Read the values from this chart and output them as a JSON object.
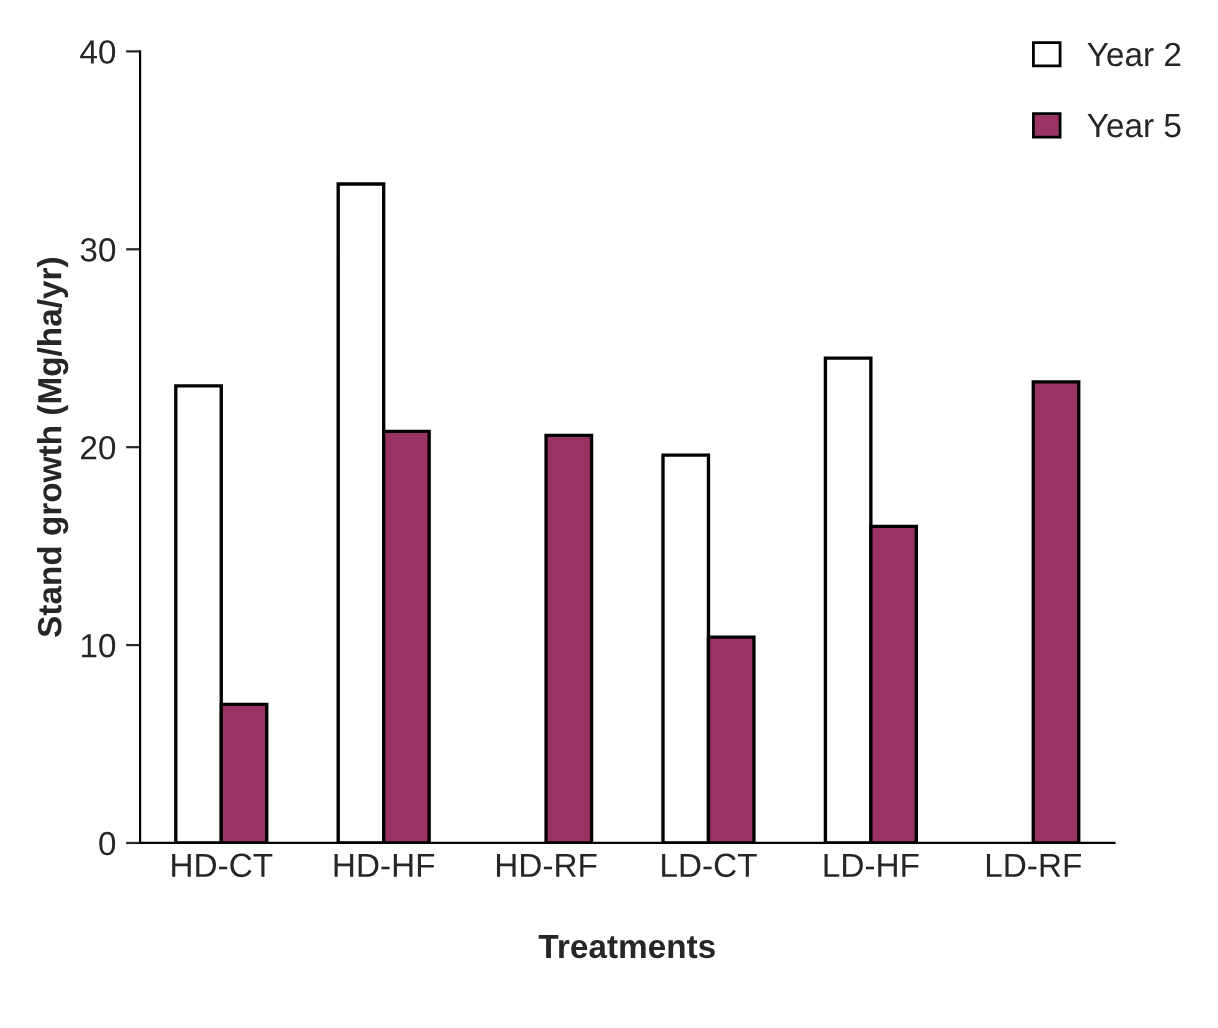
{
  "chart_data": {
    "type": "bar",
    "xlabel": "Treatments",
    "ylabel": "Stand growth (Mg/ha/yr)",
    "categories": [
      "HD-CT",
      "HD-HF",
      "HD-RF",
      "LD-CT",
      "LD-HF",
      "LD-RF"
    ],
    "series": [
      {
        "name": "Year 2",
        "color": "#ffffff",
        "values": [
          23.1,
          33.3,
          null,
          19.6,
          24.5,
          null
        ]
      },
      {
        "name": "Year 5",
        "color": "#993366",
        "values": [
          7.0,
          20.8,
          20.6,
          10.4,
          16.0,
          23.3
        ]
      }
    ],
    "ylim": [
      0,
      40
    ],
    "yticks": [
      0,
      10,
      20,
      30,
      40
    ],
    "grid": false,
    "legend": "top right"
  }
}
